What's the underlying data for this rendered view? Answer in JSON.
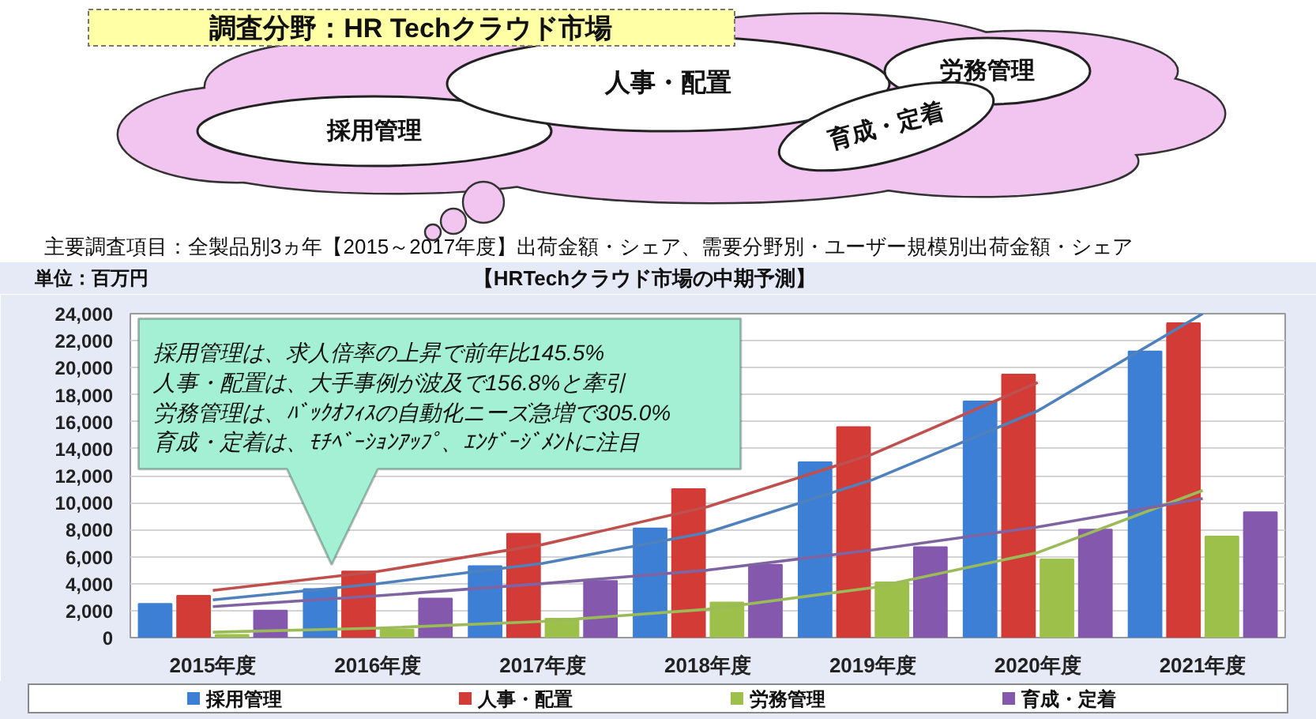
{
  "chart_data": {
    "type": "bar",
    "title": "【HRTechクラウド市場の中期予測】",
    "ylabel": "単位：百万円",
    "annotations": [
      "調査分野：HR Techクラウド市場",
      "採用管理",
      "人事・配置",
      "労務管理",
      "育成・定着",
      "主要調査項目：全製品別3ヵ年【2015～2017年度】出荷金額・シェア、需要分野別・ユーザー規模別出荷金額・シェア",
      "採用管理は、求人倍率の上昇で前年比145.5%",
      "人事・配置は、大手事例が波及で156.8%と牽引",
      "労務管理は、ﾊﾞｯｸｵﾌｨｽの自動化ニーズ急増で305.0%",
      "育成・定着は、ﾓﾁﾍﾞｰｼｮﾝｱｯﾌﾟ、ｴﾝｹﾞｰｼﾞﾒﾝﾄに注目"
    ],
    "categories": [
      "2015年度",
      "2016年度",
      "2017年度",
      "2018年度",
      "2019年度",
      "2020年度",
      "2021年度"
    ],
    "series": [
      {
        "name": "採用管理",
        "color": "#3d7fd4",
        "values": [
          2500,
          3600,
          5300,
          8100,
          13000,
          17500,
          21200
        ]
      },
      {
        "name": "人事・配置",
        "color": "#d23b36",
        "values": [
          3100,
          4900,
          7700,
          11000,
          15600,
          19500,
          23300
        ]
      },
      {
        "name": "労務管理",
        "color": "#9dc04a",
        "values": [
          200,
          600,
          1400,
          2600,
          4100,
          5800,
          7500
        ]
      },
      {
        "name": "育成・定着",
        "color": "#8358ad",
        "values": [
          2000,
          2900,
          4200,
          5400,
          6700,
          8000,
          9300
        ]
      },
      {
        "type": "line",
        "color": "#4f81bd",
        "values": [
          2800,
          4000,
          5500,
          7800,
          11700,
          16800,
          24000
        ]
      },
      {
        "type": "line",
        "color": "#c0504d",
        "values": [
          3500,
          4900,
          6900,
          9700,
          13600,
          18900,
          null
        ]
      },
      {
        "type": "line",
        "color": "#9bbb59",
        "values": [
          400,
          700,
          1200,
          2100,
          3700,
          6300,
          10900
        ]
      },
      {
        "type": "line",
        "color": "#8064a2",
        "values": [
          2300,
          3100,
          4000,
          5000,
          6500,
          8200,
          10300
        ]
      }
    ],
    "ylim": [
      0,
      24000
    ],
    "yticks": [
      0,
      {
        "value": 2000,
        "label": "2,000"
      },
      {
        "value": 4000,
        "label": "4,000"
      },
      {
        "value": 6000,
        "label": "6,000"
      },
      {
        "value": 8000,
        "label": "8,000"
      },
      {
        "value": 10000,
        "label": "10,000"
      },
      {
        "value": 12000,
        "label": "12,000"
      },
      {
        "value": 14000,
        "label": "14,000"
      },
      {
        "value": 16000,
        "label": "16,000"
      },
      {
        "value": 18000,
        "label": "18,000"
      },
      {
        "value": 20000,
        "label": "20,000"
      },
      {
        "value": 22000,
        "label": "22,000"
      },
      {
        "value": 24000,
        "label": "24,000"
      }
    ],
    "grid": "y",
    "legend": "bottom"
  }
}
